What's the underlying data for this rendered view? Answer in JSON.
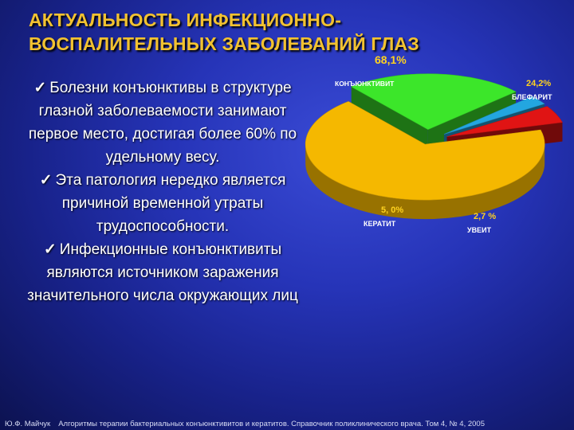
{
  "title": {
    "line1": "АКТУАЛЬНОСТЬ ИНФЕКЦИОННО-",
    "line2": "ВОСПАЛИТЕЛЬНЫХ ЗАБОЛЕВАНИЙ ГЛАЗ"
  },
  "bullets": [
    "Болезни конъюнктивы в структуре глазной заболеваемости занимают первое место, достигая более 60% по удельному весу.",
    "Эта патология нередко является причиной временной утраты трудоспособности.",
    "Инфекционные конъюнктивиты являются источником заражения значительного числа окружающих лиц"
  ],
  "chart_data": {
    "type": "pie",
    "slices": [
      {
        "name": "КОНЪЮНКТИВИТ",
        "value": 68.1,
        "label": "68,1%",
        "color": "#f5b800"
      },
      {
        "name": "БЛЕФАРИТ",
        "value": 24.2,
        "label": "24,2%",
        "color": "#3ce62a"
      },
      {
        "name": "УВЕИТ",
        "value": 2.7,
        "label": "2,7 %",
        "color": "#23a6e0"
      },
      {
        "name": "КЕРАТИТ",
        "value": 5.0,
        "label": "5, 0%",
        "color": "#e01414"
      }
    ]
  },
  "colors": {
    "title": "#f2c230",
    "text": "#ffffff",
    "value_label": "#ffd21f"
  },
  "footer": {
    "author": "Ю.Ф. Майчук",
    "source": "Алгоритмы терапии бактериальных конъюнктивитов и кератитов. Справочник поликлинического врача. Том 4, № 4, 2005"
  }
}
